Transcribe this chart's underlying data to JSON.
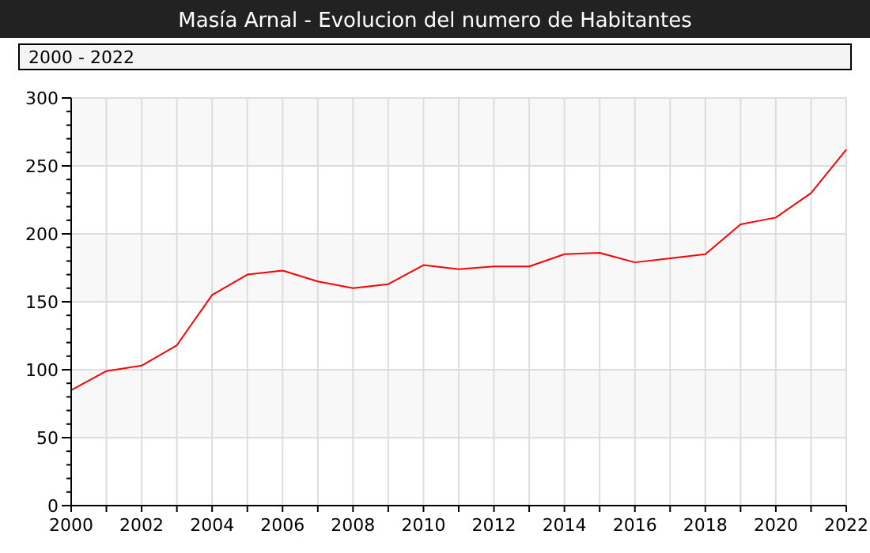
{
  "chart_data": {
    "type": "line",
    "title": "Masía Arnal - Evolucion del numero de Habitantes",
    "subtitle": "2000 - 2022",
    "x": [
      2000,
      2001,
      2002,
      2003,
      2004,
      2005,
      2006,
      2007,
      2008,
      2009,
      2010,
      2011,
      2012,
      2013,
      2014,
      2015,
      2016,
      2017,
      2018,
      2019,
      2020,
      2021,
      2022
    ],
    "series": [
      {
        "color": "#ff0000",
        "values": [
          85,
          99,
          103,
          118,
          155,
          170,
          173,
          165,
          160,
          163,
          177,
          174,
          176,
          176,
          185,
          186,
          179,
          182,
          185,
          207,
          212,
          230,
          262
        ]
      }
    ],
    "xlim": [
      2000,
      2022
    ],
    "xticks": [
      2000,
      {
        "value": 2001,
        "label": null
      },
      2002,
      {
        "value": 2003,
        "label": null
      },
      2004,
      {
        "value": 2005,
        "label": null
      },
      2006,
      {
        "value": 2007,
        "label": null
      },
      2008,
      {
        "value": 2009,
        "label": null
      },
      2010,
      {
        "value": 2011,
        "label": null
      },
      2012,
      {
        "value": 2013,
        "label": null
      },
      2014,
      {
        "value": 2015,
        "label": null
      },
      2016,
      {
        "value": 2017,
        "label": null
      },
      2018,
      {
        "value": 2019,
        "label": null
      },
      2020,
      {
        "value": 2021,
        "label": null
      },
      2022
    ],
    "ylim": [
      0,
      300
    ],
    "yticks": [
      0,
      50,
      100,
      150,
      200,
      250,
      300
    ],
    "grid": true,
    "marker": "none",
    "line_style": "solid"
  }
}
